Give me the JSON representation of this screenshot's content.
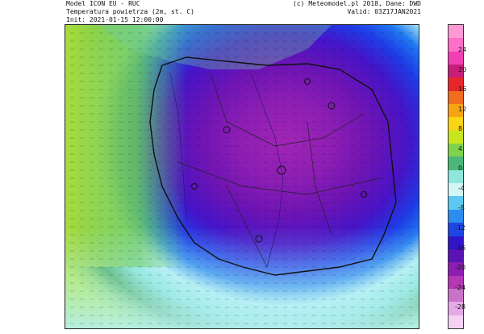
{
  "header": {
    "model": "Model ICON EU - RUC",
    "parameter": "Temperatura powietrza (2m, st. C)",
    "init": "Init: 2021-01-15 12:00:00",
    "credit": "(c) Meteomodel.pl 2018, Dane: DWD",
    "valid": "Valid: 03Z17JAN2021"
  },
  "legend": {
    "ticks": [
      "24",
      "20",
      "16",
      "12",
      "8",
      "4",
      "0",
      "-4",
      "-8",
      "-12",
      "-16",
      "-20",
      "-24",
      "-28"
    ],
    "colors": [
      "#ff9ad5",
      "#ff6ec8",
      "#f23fb4",
      "#c81e78",
      "#e8262a",
      "#f06e1e",
      "#f7a414",
      "#fad514",
      "#c8e61e",
      "#7fd24b",
      "#4bb878",
      "#8ee6dc",
      "#d2f5f5",
      "#5ac8f0",
      "#2d8cf0",
      "#1e46e6",
      "#3214c8",
      "#5a14b4",
      "#8c1eb4",
      "#b437b4",
      "#c873c8",
      "#e6aae6",
      "#f5d2f5"
    ]
  },
  "map": {
    "gradient": [
      "#b4e632",
      "#8cd250",
      "#3ca048",
      "#7fe3d3",
      "#b6f0f4",
      "#1e78f0",
      "#1e3ce6",
      "#4614c8",
      "#6e14b4",
      "#8c1eb4",
      "#a025b4"
    ]
  }
}
